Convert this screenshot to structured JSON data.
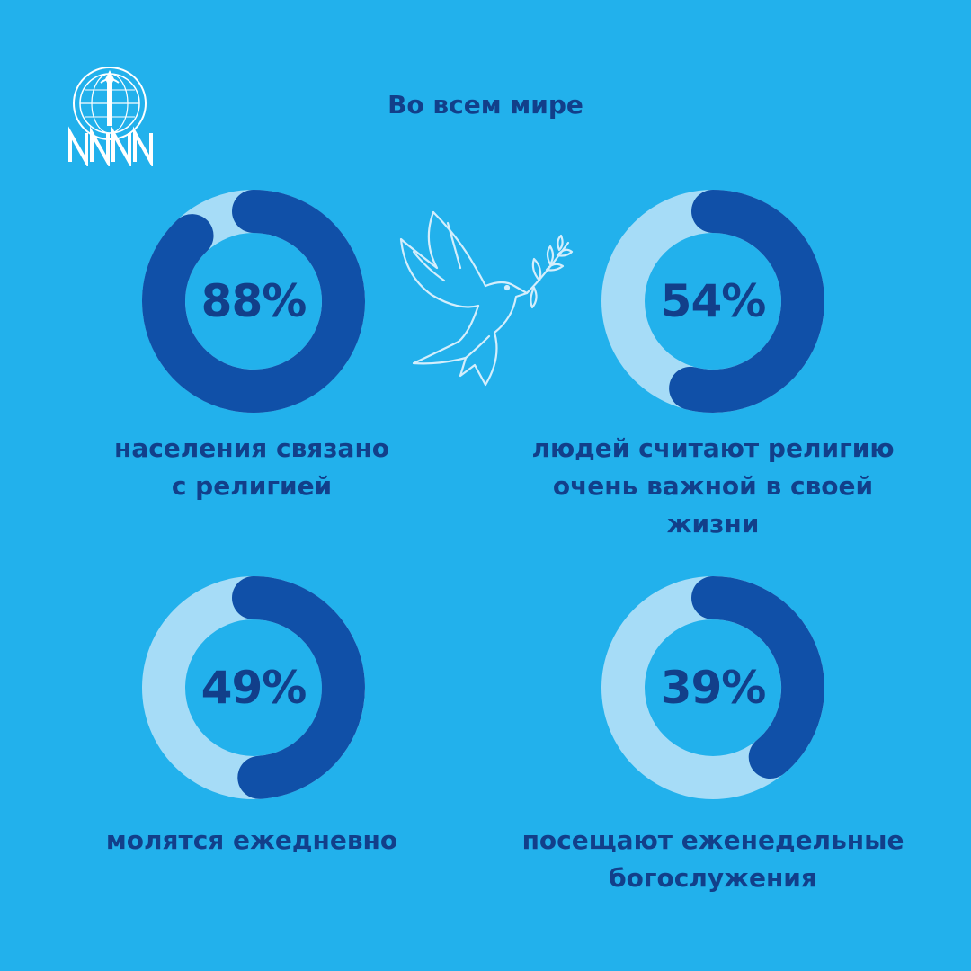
{
  "header": {
    "title": "Во всем мире"
  },
  "colors": {
    "background": "#22b1ec",
    "track": "#a6dcf7",
    "fill": "#1050a8",
    "text": "#123f8a"
  },
  "icons": {
    "logo": "globe-tower-nn-logo",
    "decoration": "dove-with-olive-branch-icon"
  },
  "chart_data": [
    {
      "type": "pie",
      "values": [
        88
      ],
      "unit": "%",
      "label": "88%",
      "caption": "населения связано\nс религией"
    },
    {
      "type": "pie",
      "values": [
        54
      ],
      "unit": "%",
      "label": "54%",
      "caption": "людей считают религию\nочень важной в своей\nжизни"
    },
    {
      "type": "pie",
      "values": [
        49
      ],
      "unit": "%",
      "label": "49%",
      "caption": "молятся ежедневно"
    },
    {
      "type": "pie",
      "values": [
        39
      ],
      "unit": "%",
      "label": "39%",
      "caption": "посещают еженедельные\nбогослужения"
    }
  ]
}
